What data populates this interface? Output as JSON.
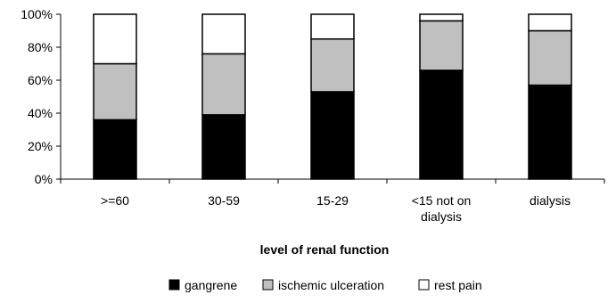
{
  "chart_data": {
    "type": "bar",
    "stacked": true,
    "percent": true,
    "xlabel": "level of renal function",
    "ylabel": "",
    "ylim": [
      0,
      100
    ],
    "yticks": [
      0,
      20,
      40,
      60,
      80,
      100
    ],
    "ytick_labels": [
      "0%",
      "20%",
      "40%",
      "60%",
      "80%",
      "100%"
    ],
    "categories": [
      [
        ">=60"
      ],
      [
        "30-59"
      ],
      [
        "15-29"
      ],
      [
        "<15 not on",
        "dialysis"
      ],
      [
        "dialysis"
      ]
    ],
    "series": [
      {
        "name": "gangrene",
        "color": "#000000",
        "values": [
          36,
          39,
          53,
          66,
          57
        ]
      },
      {
        "name": "ischemic ulceration",
        "color": "#c0c0c0",
        "values": [
          34,
          37,
          32,
          30,
          33
        ]
      },
      {
        "name": "rest pain",
        "color": "#ffffff",
        "values": [
          30,
          24,
          15,
          4,
          10
        ]
      }
    ],
    "grid": false,
    "legend_position": "bottom"
  }
}
